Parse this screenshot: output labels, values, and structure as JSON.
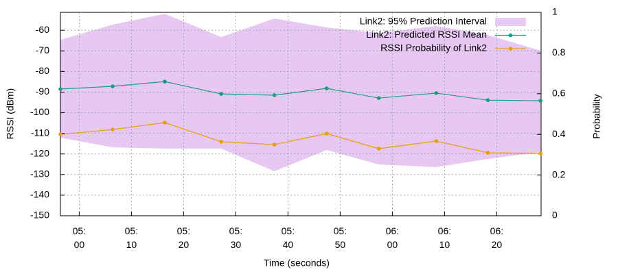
{
  "chart_data": {
    "type": "line",
    "x_label": "Time (seconds)",
    "y_label": "RSSI (dBm)",
    "y2_label": "Probability",
    "x": [
      296.4,
      306.4,
      316.4,
      327.2,
      337.4,
      347.4,
      357.4,
      368.4,
      378.3,
      388.4
    ],
    "xlim": [
      296.4,
      388.5
    ],
    "xticks": [
      {
        "value": 300,
        "label": "05:\n00"
      },
      {
        "value": 310,
        "label": "05:\n10"
      },
      {
        "value": 320,
        "label": "05:\n20"
      },
      {
        "value": 330,
        "label": "05:\n30"
      },
      {
        "value": 340,
        "label": "05:\n40"
      },
      {
        "value": 350,
        "label": "05:\n50"
      },
      {
        "value": 360,
        "label": "06:\n00"
      },
      {
        "value": 370,
        "label": "06:\n10"
      },
      {
        "value": 380,
        "label": "06:\n20"
      }
    ],
    "ylim": [
      -150,
      -51.3
    ],
    "yticks": [
      -150,
      -140,
      -130,
      -120,
      -110,
      -100,
      -90,
      -80,
      -70,
      -60
    ],
    "y2lim": [
      0,
      1
    ],
    "y2ticks": [
      0,
      0.2,
      0.4,
      0.6,
      0.8,
      1
    ],
    "grid": true,
    "legend": "top-right",
    "series": [
      {
        "name": "Link2: 95% Prediction Interval",
        "type": "band",
        "color": "#e6c8f2",
        "upper": [
          -64.6,
          -57.3,
          -52.0,
          -63.3,
          -54.3,
          -58.6,
          -61.3,
          -57.9,
          -62.3,
          -69.9
        ],
        "lower": [
          -112.1,
          -116.8,
          -117.4,
          -117.4,
          -128.4,
          -118.1,
          -125.1,
          -126.4,
          -122.4,
          -119.1
        ]
      },
      {
        "name": "Link2: Predicted RSSI Mean",
        "type": "line",
        "color": "#1a9b80",
        "values": [
          -88.5,
          -87.2,
          -84.9,
          -90.9,
          -91.5,
          -88.2,
          -92.9,
          -90.5,
          -93.9,
          -94.2
        ]
      },
      {
        "name": "RSSI Probability of Link2",
        "type": "line",
        "color": "#e69f00",
        "axis": "y2",
        "values": [
          0.4,
          0.424,
          0.458,
          0.364,
          0.35,
          0.404,
          0.33,
          0.367,
          0.31,
          0.306
        ]
      }
    ]
  }
}
